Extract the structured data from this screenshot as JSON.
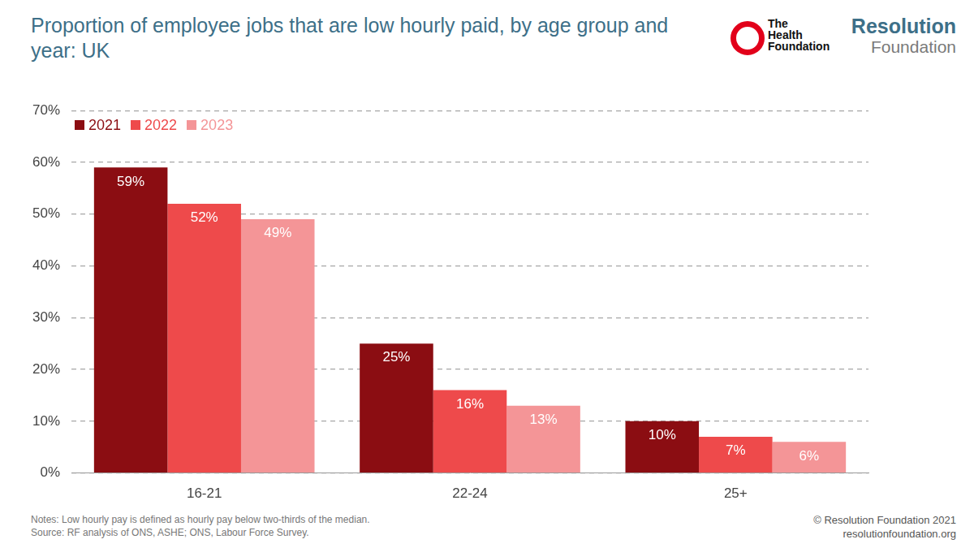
{
  "chart_data": {
    "type": "bar",
    "title": "Proportion of employee jobs that are low hourly paid, by age group and year: UK",
    "categories": [
      "16-21",
      "22-24",
      "25+"
    ],
    "series": [
      {
        "name": "2021",
        "color": "#8b0d12",
        "values": [
          59,
          25,
          10
        ],
        "value_labels": [
          "59%",
          "25%",
          "10%"
        ]
      },
      {
        "name": "2022",
        "color": "#ee4a4b",
        "values": [
          52,
          16,
          7
        ],
        "value_labels": [
          "52%",
          "16%",
          "7%"
        ]
      },
      {
        "name": "2023",
        "color": "#f49597",
        "values": [
          49,
          13,
          6
        ],
        "value_labels": [
          "49%",
          "13%",
          "6%"
        ]
      }
    ],
    "ylim": [
      0,
      70
    ],
    "yticks": [
      {
        "value": 0,
        "label": "0%"
      },
      {
        "value": 10,
        "label": "10%"
      },
      {
        "value": 20,
        "label": "20%"
      },
      {
        "value": 30,
        "label": "30%"
      },
      {
        "value": 40,
        "label": "40%"
      },
      {
        "value": 50,
        "label": "50%"
      },
      {
        "value": 60,
        "label": "60%"
      },
      {
        "value": 70,
        "label": "70%"
      }
    ],
    "grid": true,
    "legend": "upper left",
    "data_labels": true,
    "notes": "Notes: Low hourly pay is defined as hourly pay below two-thirds of the median.",
    "source": "Source: RF analysis of ONS, ASHE; ONS, Labour Force Survey.",
    "logos": [
      "The Health Foundation",
      "Resolution Foundation"
    ],
    "copyright": "© Resolution Foundation 2021",
    "website": "resolutionfoundation.org"
  }
}
